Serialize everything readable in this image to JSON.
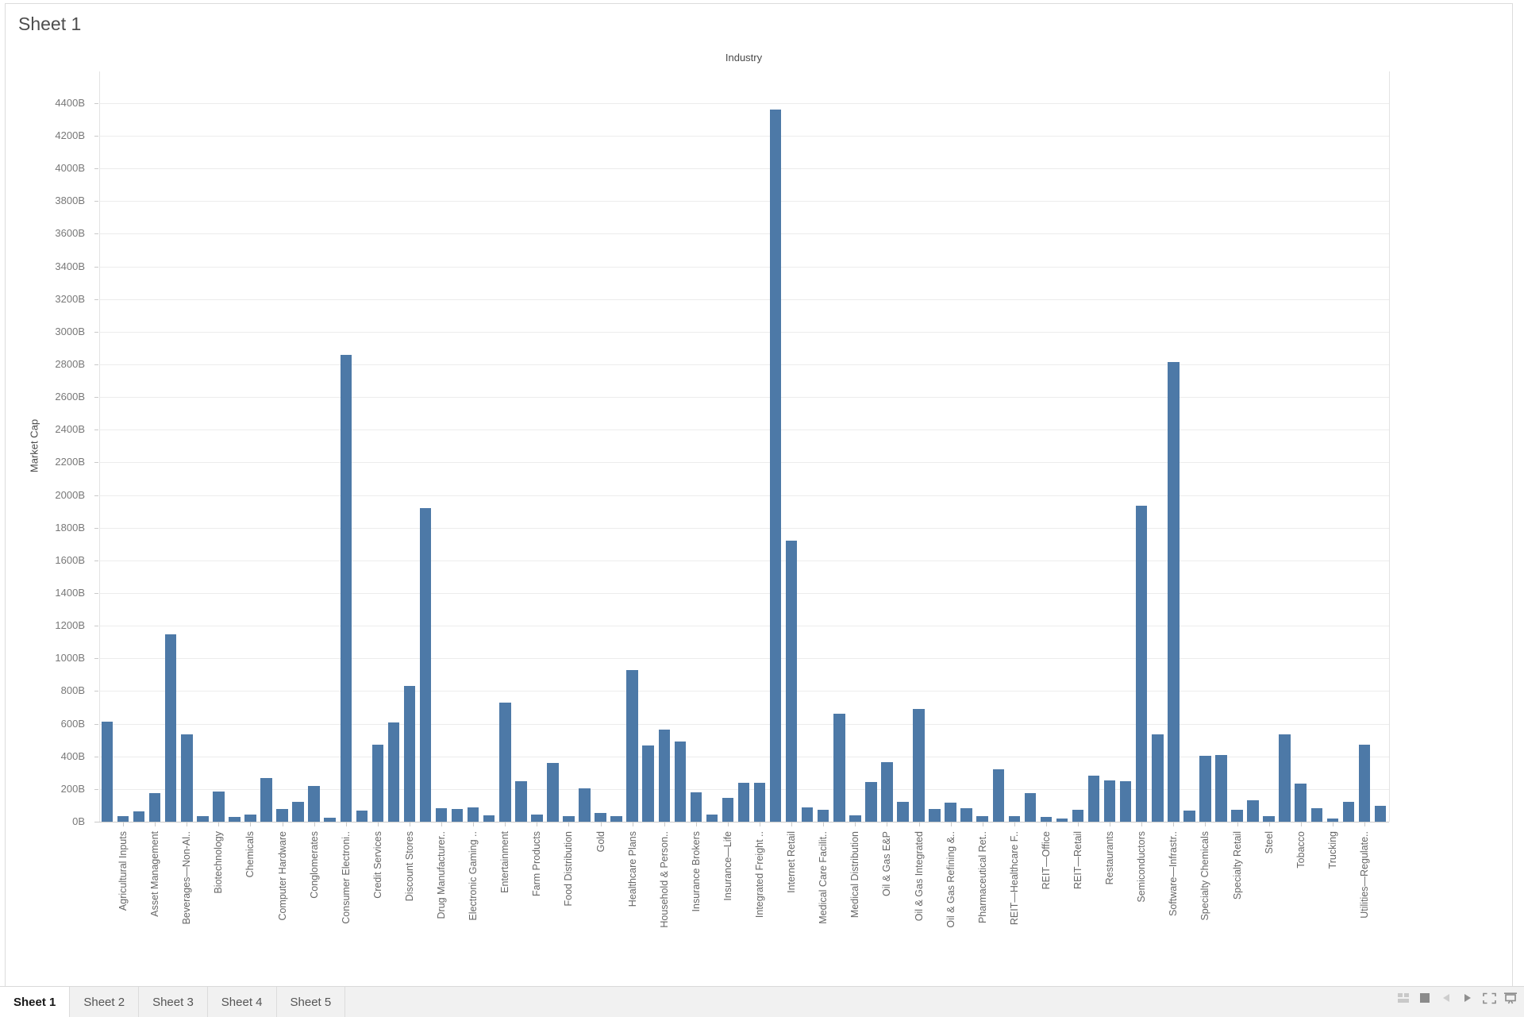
{
  "window": {
    "sheet_title": "Sheet 1"
  },
  "chart_data": {
    "type": "bar",
    "title": "Industry",
    "xlabel": "",
    "ylabel": "Market Cap",
    "bar_color": "#4d79a7",
    "grid": true,
    "legend_position": "none",
    "y_axis": {
      "min": 0,
      "max": 4400,
      "tick_step": 200,
      "tick_suffix": "B",
      "tick_labels": [
        "0B",
        "200B",
        "400B",
        "600B",
        "800B",
        "1000B",
        "1200B",
        "1400B",
        "1600B",
        "1800B",
        "2000B",
        "2200B",
        "2400B",
        "2600B",
        "2800B",
        "3000B",
        "3200B",
        "3400B",
        "3600B",
        "3800B",
        "4000B",
        "4200B",
        "4400B"
      ]
    },
    "note_units": "billions USD market cap; unlabeled bars sit between labeled industry categories (axis shows every other label)",
    "bars": [
      {
        "label": "",
        "value": 611
      },
      {
        "label": "Agricultural Inputs",
        "value": 35
      },
      {
        "label": "",
        "value": 62
      },
      {
        "label": "Asset Management",
        "value": 176
      },
      {
        "label": "",
        "value": 1145
      },
      {
        "label": "Beverages—Non-Al..",
        "value": 533
      },
      {
        "label": "",
        "value": 35
      },
      {
        "label": "Biotechnology",
        "value": 187
      },
      {
        "label": "",
        "value": 27
      },
      {
        "label": "Chemicals",
        "value": 46
      },
      {
        "label": "",
        "value": 265
      },
      {
        "label": "Computer Hardware",
        "value": 79
      },
      {
        "label": "",
        "value": 123
      },
      {
        "label": "Conglomerates",
        "value": 219
      },
      {
        "label": "",
        "value": 26
      },
      {
        "label": "Consumer Electroni..",
        "value": 2860
      },
      {
        "label": "",
        "value": 70
      },
      {
        "label": "Credit Services",
        "value": 470
      },
      {
        "label": "",
        "value": 607
      },
      {
        "label": "Discount Stores",
        "value": 832
      },
      {
        "label": "",
        "value": 1920
      },
      {
        "label": "Drug Manufacturer..",
        "value": 85
      },
      {
        "label": "",
        "value": 77
      },
      {
        "label": "Electronic Gaming ..",
        "value": 89
      },
      {
        "label": "",
        "value": 40
      },
      {
        "label": "Entertainment",
        "value": 730
      },
      {
        "label": "",
        "value": 248
      },
      {
        "label": "Farm Products",
        "value": 45
      },
      {
        "label": "",
        "value": 361
      },
      {
        "label": "Food Distribution",
        "value": 34
      },
      {
        "label": "",
        "value": 206
      },
      {
        "label": "Gold",
        "value": 55
      },
      {
        "label": "",
        "value": 34
      },
      {
        "label": "Healthcare Plans",
        "value": 927
      },
      {
        "label": "",
        "value": 465
      },
      {
        "label": "Household & Person..",
        "value": 566
      },
      {
        "label": "",
        "value": 493
      },
      {
        "label": "Insurance Brokers",
        "value": 182
      },
      {
        "label": "",
        "value": 45
      },
      {
        "label": "Insurance—Life",
        "value": 145
      },
      {
        "label": "",
        "value": 239
      },
      {
        "label": "Integrated Freight ..",
        "value": 240
      },
      {
        "label": "",
        "value": 4360
      },
      {
        "label": "Internet Retail",
        "value": 1720
      },
      {
        "label": "",
        "value": 89
      },
      {
        "label": "Medical Care Facilit..",
        "value": 73
      },
      {
        "label": "",
        "value": 663
      },
      {
        "label": "Medical Distribution",
        "value": 40
      },
      {
        "label": "",
        "value": 244
      },
      {
        "label": "Oil & Gas E&P",
        "value": 367
      },
      {
        "label": "",
        "value": 122
      },
      {
        "label": "Oil & Gas Integrated",
        "value": 691
      },
      {
        "label": "",
        "value": 78
      },
      {
        "label": "Oil & Gas Refining &..",
        "value": 117
      },
      {
        "label": "",
        "value": 81
      },
      {
        "label": "Pharmaceutical Ret..",
        "value": 33
      },
      {
        "label": "",
        "value": 323
      },
      {
        "label": "REIT—Healthcare F..",
        "value": 33
      },
      {
        "label": "",
        "value": 174
      },
      {
        "label": "REIT—Office",
        "value": 28
      },
      {
        "label": "",
        "value": 20
      },
      {
        "label": "REIT—Retail",
        "value": 73
      },
      {
        "label": "",
        "value": 280
      },
      {
        "label": "Restaurants",
        "value": 252
      },
      {
        "label": "",
        "value": 247
      },
      {
        "label": "Semiconductors",
        "value": 1935
      },
      {
        "label": "",
        "value": 535
      },
      {
        "label": "Software—Infrastr..",
        "value": 2815
      },
      {
        "label": "",
        "value": 70
      },
      {
        "label": "Specialty Chemicals",
        "value": 403
      },
      {
        "label": "",
        "value": 406
      },
      {
        "label": "Specialty Retail",
        "value": 73
      },
      {
        "label": "",
        "value": 133
      },
      {
        "label": "Steel",
        "value": 33
      },
      {
        "label": "",
        "value": 536
      },
      {
        "label": "Tobacco",
        "value": 235
      },
      {
        "label": "",
        "value": 81
      },
      {
        "label": "Trucking",
        "value": 21
      },
      {
        "label": "",
        "value": 120
      },
      {
        "label": "Utilities—Regulate..",
        "value": 472
      },
      {
        "label": "",
        "value": 99
      }
    ]
  },
  "tab_bar": {
    "tabs": [
      {
        "label": "Sheet 1",
        "active": true
      },
      {
        "label": "Sheet 2",
        "active": false
      },
      {
        "label": "Sheet 3",
        "active": false
      },
      {
        "label": "Sheet 4",
        "active": false
      },
      {
        "label": "Sheet 5",
        "active": false
      }
    ]
  },
  "status_bar": {
    "icons": [
      {
        "name": "show-sheet-sorter-icon"
      },
      {
        "name": "show-current-sheet-icon"
      },
      {
        "name": "previous-sheet-icon"
      },
      {
        "name": "next-sheet-icon"
      },
      {
        "name": "toggle-fullscreen-icon"
      },
      {
        "name": "presentation-mode-icon"
      }
    ]
  }
}
